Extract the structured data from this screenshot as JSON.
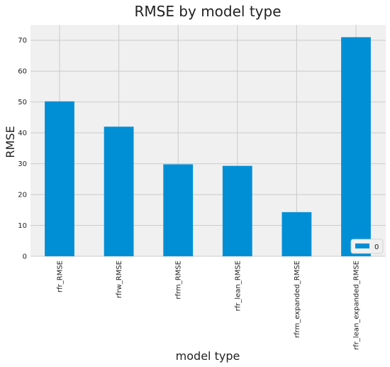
{
  "chart_data": {
    "type": "bar",
    "title": "RMSE by model type",
    "xlabel": "model type",
    "ylabel": "RMSE",
    "categories": [
      "rfr_RMSE",
      "rfrw_RMSE",
      "rfrm_RMSE",
      "rfr_lean_RMSE",
      "rfrm_expanded_RMSE",
      "rfr_lean_expanded_RMSE"
    ],
    "series": [
      {
        "name": "0",
        "values": [
          50.2,
          42.0,
          29.8,
          29.3,
          14.3,
          71.0
        ]
      }
    ],
    "ylim": [
      0,
      75
    ],
    "yticks": [
      "0",
      "10",
      "20",
      "30",
      "40",
      "50",
      "60",
      "70"
    ],
    "grid": true,
    "legend_position": "lower-right",
    "colors": {
      "bar": "#008fd5",
      "plot_background": "#f0f0f0",
      "grid": "#cbcbcb",
      "figure_background": "#ffffff"
    }
  }
}
